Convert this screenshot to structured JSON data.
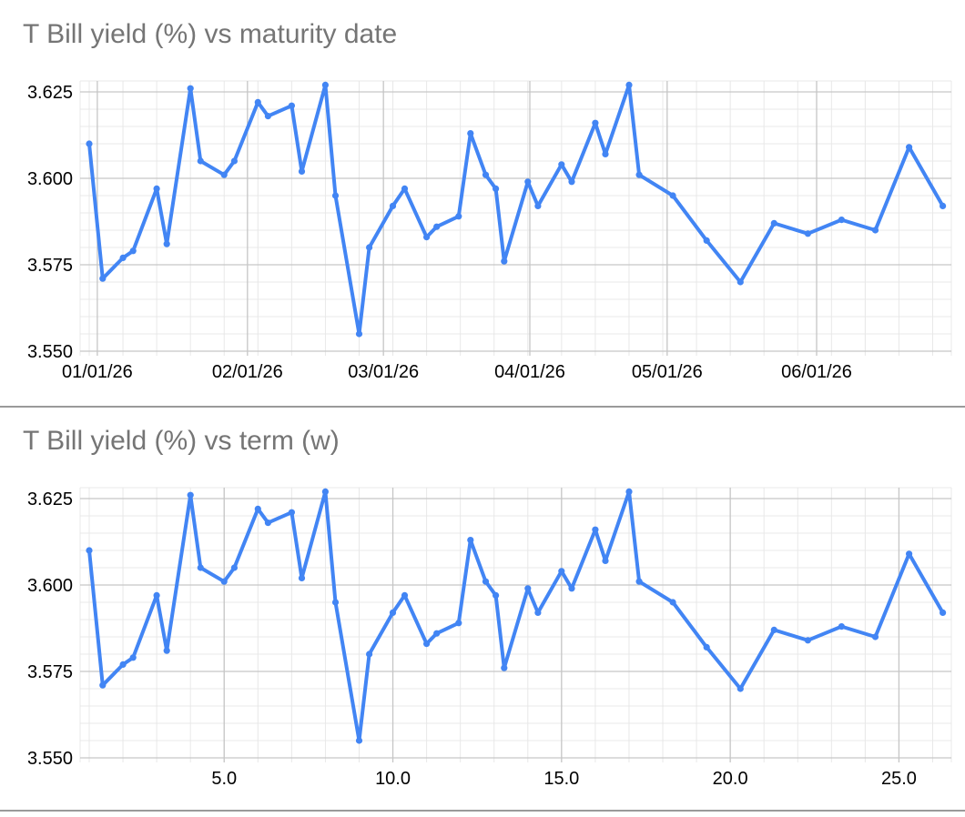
{
  "styles": {
    "background": "#ffffff",
    "series_color": "#4285f4",
    "title_color": "#757575",
    "tick_label_color": "#000000",
    "grid_minor_color": "#e8e8e8",
    "grid_major_color": "#c6c6c6",
    "separator_color": "#9a9a9a"
  },
  "chart_data": [
    {
      "type": "line",
      "title": "T Bill yield (%) vs maturity date",
      "xlabel": "maturity date",
      "ylabel": "T Bill yield (%)",
      "legend": "none",
      "grid": true,
      "marker": "circle",
      "x_axis": {
        "kind": "date",
        "ticks": [
          {
            "label": "01/01/26",
            "t": 1.24
          },
          {
            "label": "02/01/26",
            "t": 5.69
          },
          {
            "label": "03/01/26",
            "t": 9.72
          },
          {
            "label": "04/01/26",
            "t": 14.06
          },
          {
            "label": "05/01/26",
            "t": 18.13
          },
          {
            "label": "06/01/26",
            "t": 22.56
          }
        ]
      },
      "y_axis": {
        "ticks": [
          {
            "label": "3.550",
            "v": 3.55
          },
          {
            "label": "3.575",
            "v": 3.575
          },
          {
            "label": "3.600",
            "v": 3.6
          },
          {
            "label": "3.625",
            "v": 3.625
          }
        ],
        "range": [
          3.5495,
          3.628
        ],
        "minor_step": 0.005
      },
      "x_weeks": [
        1.0,
        1.4,
        2.0,
        2.3,
        3.0,
        3.3,
        4.0,
        4.3,
        5.0,
        5.3,
        6.0,
        6.3,
        7.0,
        7.3,
        8.0,
        8.3,
        9.0,
        9.3,
        10.0,
        10.35,
        11.0,
        11.3,
        11.95,
        12.3,
        12.75,
        13.05,
        13.3,
        14.0,
        14.3,
        15.0,
        15.3,
        16.0,
        16.3,
        17.0,
        17.3,
        18.3,
        19.3,
        20.3,
        21.3,
        22.3,
        23.3,
        24.3,
        25.3,
        26.3
      ],
      "values": [
        3.61,
        3.571,
        3.577,
        3.579,
        3.597,
        3.581,
        3.626,
        3.605,
        3.601,
        3.605,
        3.622,
        3.618,
        3.621,
        3.602,
        3.627,
        3.595,
        3.555,
        3.58,
        3.592,
        3.597,
        3.583,
        3.586,
        3.589,
        3.613,
        3.601,
        3.597,
        3.576,
        3.599,
        3.592,
        3.604,
        3.599,
        3.616,
        3.607,
        3.627,
        3.601,
        3.595,
        3.582,
        3.57,
        3.587,
        3.584,
        3.588,
        3.585,
        3.609,
        3.592
      ]
    },
    {
      "type": "line",
      "title": "T Bill yield (%) vs term (w)",
      "xlabel": "term (w)",
      "ylabel": "T Bill yield (%)",
      "legend": "none",
      "grid": true,
      "marker": "circle",
      "x_axis": {
        "kind": "numeric",
        "ticks": [
          {
            "label": "5.0",
            "t": 5
          },
          {
            "label": "10.0",
            "t": 10
          },
          {
            "label": "15.0",
            "t": 15
          },
          {
            "label": "20.0",
            "t": 20
          },
          {
            "label": "25.0",
            "t": 25
          }
        ]
      },
      "y_axis": {
        "ticks": [
          {
            "label": "3.550",
            "v": 3.55
          },
          {
            "label": "3.575",
            "v": 3.575
          },
          {
            "label": "3.600",
            "v": 3.6
          },
          {
            "label": "3.625",
            "v": 3.625
          }
        ],
        "range": [
          3.5495,
          3.628
        ],
        "minor_step": 0.005
      },
      "x_weeks": [
        1.0,
        1.4,
        2.0,
        2.3,
        3.0,
        3.3,
        4.0,
        4.3,
        5.0,
        5.3,
        6.0,
        6.3,
        7.0,
        7.3,
        8.0,
        8.3,
        9.0,
        9.3,
        10.0,
        10.35,
        11.0,
        11.3,
        11.95,
        12.3,
        12.75,
        13.05,
        13.3,
        14.0,
        14.3,
        15.0,
        15.3,
        16.0,
        16.3,
        17.0,
        17.3,
        18.3,
        19.3,
        20.3,
        21.3,
        22.3,
        23.3,
        24.3,
        25.3,
        26.3
      ],
      "values": [
        3.61,
        3.571,
        3.577,
        3.579,
        3.597,
        3.581,
        3.626,
        3.605,
        3.601,
        3.605,
        3.622,
        3.618,
        3.621,
        3.602,
        3.627,
        3.595,
        3.555,
        3.58,
        3.592,
        3.597,
        3.583,
        3.586,
        3.589,
        3.613,
        3.601,
        3.597,
        3.576,
        3.599,
        3.592,
        3.604,
        3.599,
        3.616,
        3.607,
        3.627,
        3.601,
        3.595,
        3.582,
        3.57,
        3.587,
        3.584,
        3.588,
        3.585,
        3.609,
        3.592
      ]
    }
  ]
}
